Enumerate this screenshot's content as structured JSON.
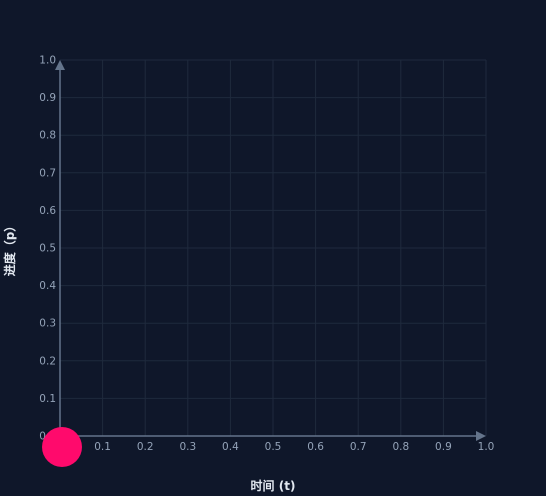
{
  "chart_data": {
    "type": "scatter",
    "xlabel": "时间 (t)",
    "ylabel": "进度（p）",
    "xlim": [
      0,
      1
    ],
    "ylim": [
      0,
      1
    ],
    "x_ticks": [
      "0.1",
      "0.2",
      "0.3",
      "0.4",
      "0.5",
      "0.6",
      "0.7",
      "0.8",
      "0.9",
      "1.0"
    ],
    "y_ticks": [
      "0.0",
      "0.1",
      "0.2",
      "0.3",
      "0.4",
      "0.5",
      "0.6",
      "0.7",
      "0.8",
      "0.9",
      "1.0"
    ],
    "grid": true,
    "points": [
      {
        "x": 0.0,
        "y": 0.0
      }
    ],
    "colors": {
      "background": "#0f172a",
      "grid": "#1f2a3d",
      "axis": "#64748b",
      "tick": "#94a3b8",
      "title": "#e2e8f0",
      "marker": "#ff0a6c"
    }
  }
}
